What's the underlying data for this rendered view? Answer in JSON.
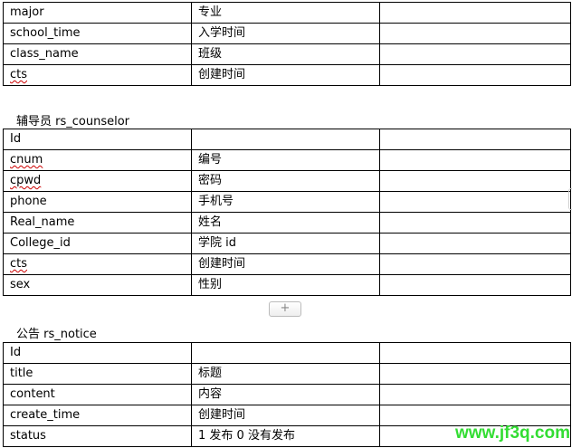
{
  "table1": {
    "rows": [
      {
        "field": "major",
        "desc": "专业",
        "note": ""
      },
      {
        "field": "school_time",
        "desc": "入学时间",
        "note": ""
      },
      {
        "field": "class_name",
        "desc": "班级",
        "note": ""
      },
      {
        "field": "cts",
        "desc": "创建时间",
        "note": ""
      }
    ]
  },
  "counselor": {
    "heading": "辅导员 rs_counselor",
    "rows": [
      {
        "field": "Id",
        "desc": "",
        "note": ""
      },
      {
        "field": "cnum",
        "desc": "编号",
        "note": ""
      },
      {
        "field": "cpwd",
        "desc": "密码",
        "note": ""
      },
      {
        "field": "phone",
        "desc": "手机号",
        "note": ""
      },
      {
        "field": "Real_name",
        "desc": "姓名",
        "note": ""
      },
      {
        "field": "College_id",
        "desc": "学院 id",
        "note": ""
      },
      {
        "field": "cts",
        "desc": "创建时间",
        "note": ""
      },
      {
        "field": "sex",
        "desc": "性别",
        "note": ""
      }
    ]
  },
  "add_row_label": "+",
  "notice": {
    "heading": "公告 rs_notice",
    "rows": [
      {
        "field": "Id",
        "desc": "",
        "note": ""
      },
      {
        "field": "title",
        "desc": "标题",
        "note": ""
      },
      {
        "field": "content",
        "desc": "内容",
        "note": ""
      },
      {
        "field": "create_time",
        "desc": "创建时间",
        "note": ""
      },
      {
        "field": "status",
        "desc": "1 发布 0 没有发布",
        "note": ""
      }
    ]
  },
  "watermark": "www.jf3q.com"
}
